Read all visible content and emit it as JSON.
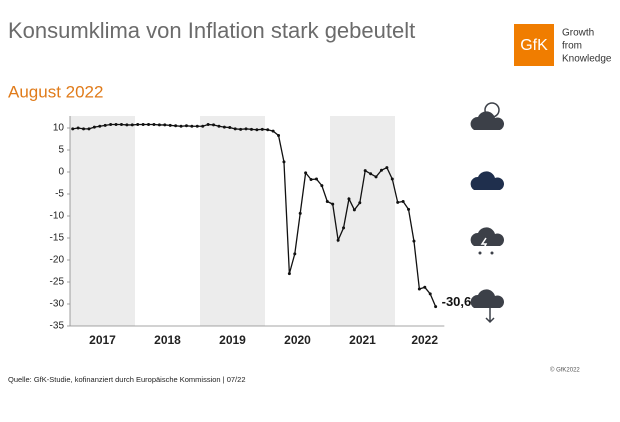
{
  "chart_data": {
    "type": "line",
    "title": "Konsumklima von Inflation stark gebeutelt",
    "subtitle": "August 2022",
    "logo_text": "GfK",
    "tagline": [
      "Growth",
      "from",
      "Knowledge"
    ],
    "source": "Quelle: GfK-Studie, kofinanziert durch Europäische Kommission | 07/22",
    "copyright": "© GfK2022",
    "year_labels": [
      "2017",
      "2018",
      "2019",
      "2020",
      "2021",
      "2022"
    ],
    "color": "#111111",
    "ylim": [
      -35,
      10
    ],
    "yticks": [
      10,
      5,
      0,
      -5,
      -10,
      -15,
      -20,
      -25,
      -30,
      -35
    ],
    "values": [
      9.8,
      10.0,
      9.8,
      9.8,
      10.2,
      10.4,
      10.6,
      10.8,
      10.8,
      10.8,
      10.7,
      10.7,
      10.8,
      10.8,
      10.8,
      10.8,
      10.7,
      10.7,
      10.6,
      10.5,
      10.4,
      10.5,
      10.4,
      10.4,
      10.4,
      10.8,
      10.7,
      10.4,
      10.2,
      10.1,
      9.8,
      9.7,
      9.8,
      9.7,
      9.6,
      9.7,
      9.6,
      9.3,
      8.3,
      2.3,
      -23.1,
      -18.6,
      -9.4,
      -0.2,
      -1.7,
      -1.6,
      -3.1,
      -6.7,
      -7.3,
      -15.5,
      -12.7,
      -6.1,
      -8.6,
      -7.0,
      0.3,
      -0.4,
      -1.1,
      0.4,
      1.0,
      -1.6,
      -6.9,
      -6.7,
      -8.5,
      -15.7,
      -26.6,
      -26.2,
      -27.7,
      -30.6
    ],
    "value_labels": [
      null,
      null,
      null,
      null,
      null,
      null,
      null,
      null,
      null,
      null,
      null,
      null,
      null,
      null,
      null,
      null,
      null,
      null,
      null,
      null,
      null,
      null,
      null,
      null,
      null,
      null,
      null,
      null,
      null,
      null,
      null,
      null,
      null,
      null,
      null,
      null,
      null,
      null,
      null,
      null,
      null,
      null,
      null,
      null,
      null,
      null,
      null,
      null,
      null,
      null,
      null,
      null,
      null,
      null,
      null,
      null,
      null,
      null,
      null,
      null,
      null,
      null,
      null,
      null,
      null,
      null,
      null,
      "-30,6"
    ]
  }
}
